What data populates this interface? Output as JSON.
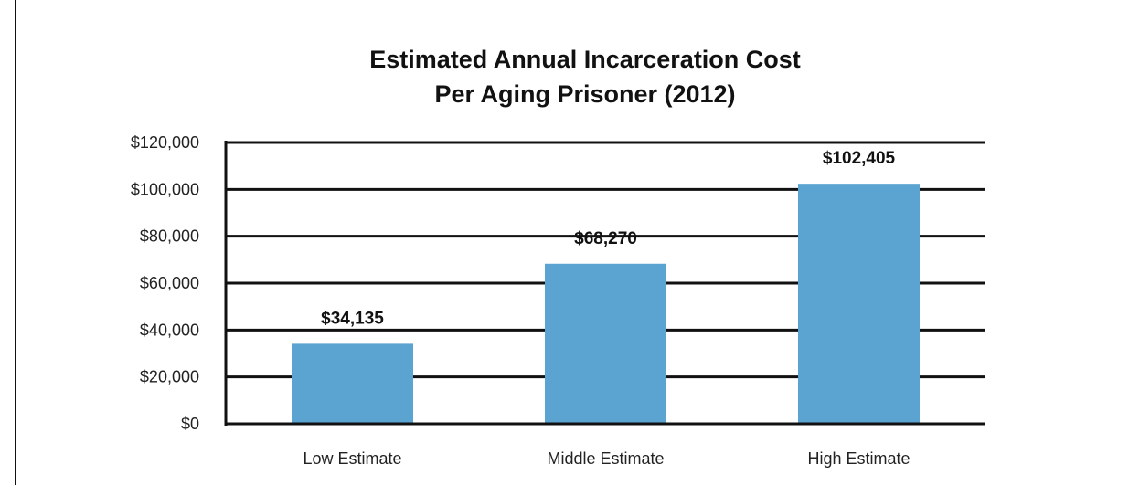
{
  "chart_data": {
    "type": "bar",
    "title_lines": [
      "Estimated Annual Incarceration Cost",
      "Per Aging Prisoner (2012)"
    ],
    "categories": [
      "Low Estimate",
      "Middle Estimate",
      "High Estimate"
    ],
    "values": [
      34135,
      68270,
      102405
    ],
    "data_labels": [
      "$34,135",
      "$68,270",
      "$102,405"
    ],
    "ylim": [
      0,
      120000
    ],
    "yticks": [
      0,
      20000,
      40000,
      60000,
      80000,
      100000,
      120000
    ],
    "ytick_labels": [
      "$0",
      "$20,000",
      "$40,000",
      "$60,000",
      "$80,000",
      "$100,000",
      "$120,000"
    ],
    "xlabel": "",
    "ylabel": "",
    "grid": true,
    "legend": "none",
    "bar_color": "#5BA3D0",
    "grid_color": "#111111"
  }
}
